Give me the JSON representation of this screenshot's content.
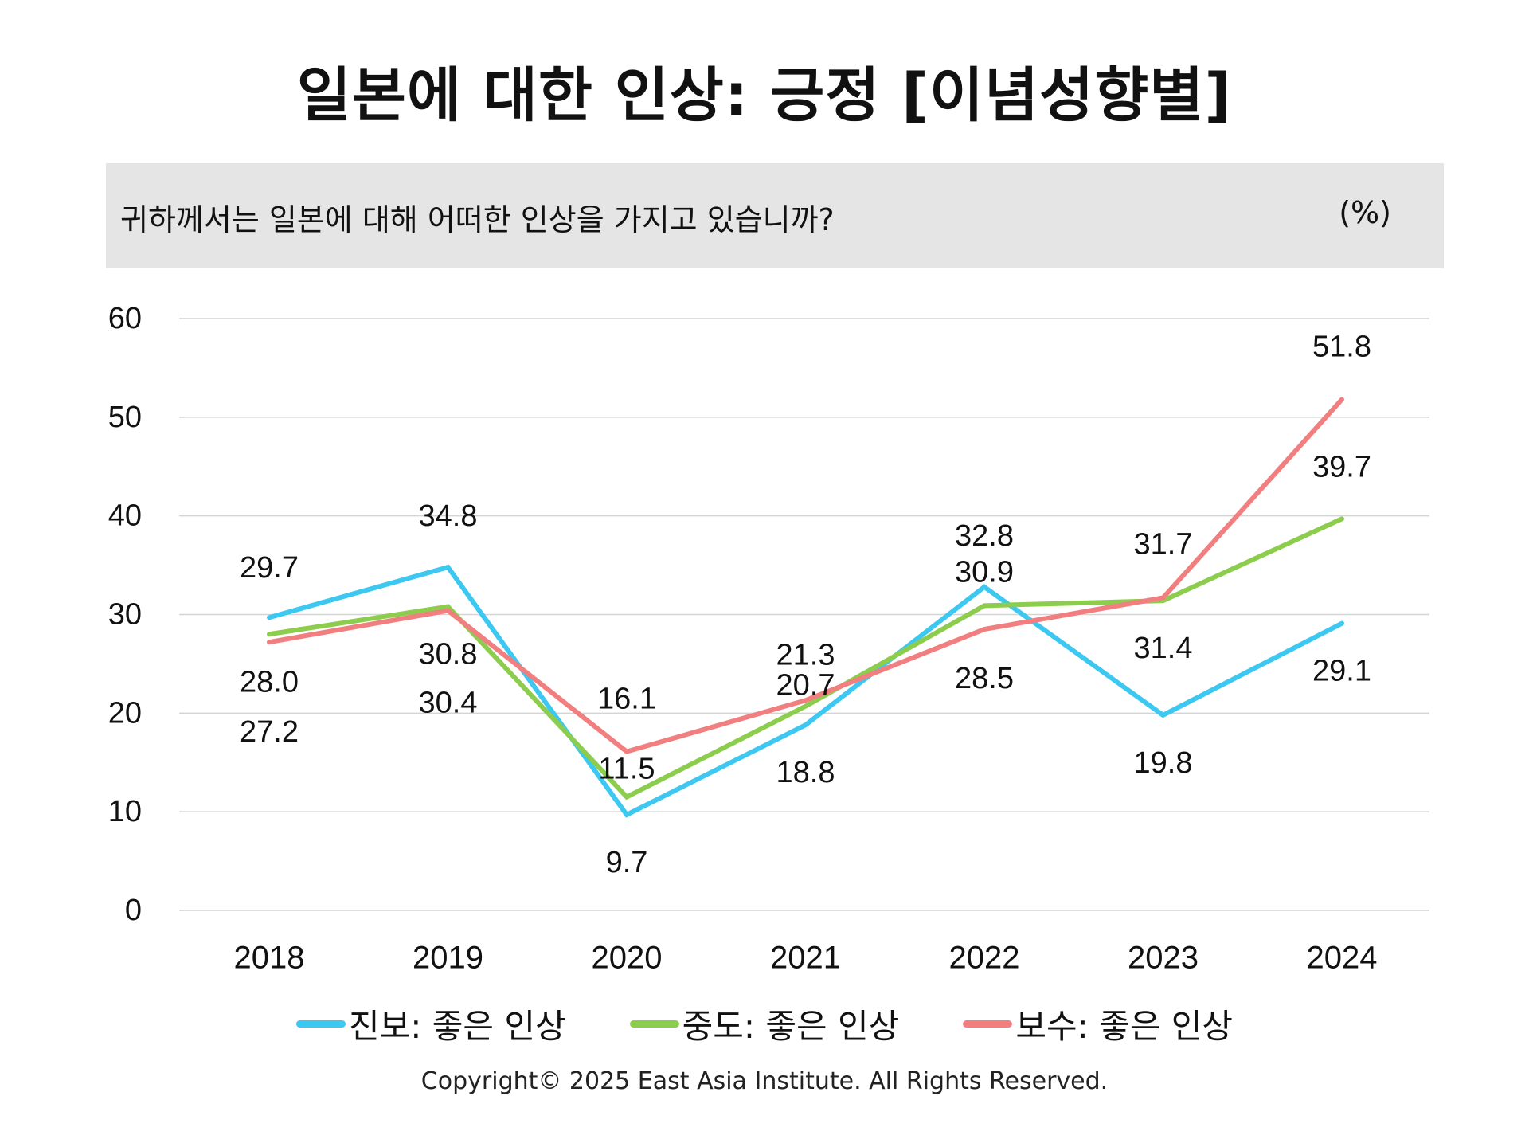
{
  "title": "일본에 대한 인상: 긍정 [이념성향별]",
  "question": "귀하께서는 일본에 대해 어떠한 인상을 가지고 있습니까?",
  "unit": "(%)",
  "copyright": "Copyright© 2025 East Asia Institute. All Rights Reserved.",
  "chart_data": {
    "type": "line",
    "x": [
      "2018",
      "2019",
      "2020",
      "2021",
      "2022",
      "2023",
      "2024"
    ],
    "ylim": [
      0,
      60
    ],
    "yticks": [
      0,
      10,
      20,
      30,
      40,
      50,
      60
    ],
    "grid": true,
    "legend_position": "bottom",
    "series": [
      {
        "name": "진보: 좋은 인상",
        "color": "#3cc8f0",
        "values": [
          29.7,
          34.8,
          9.7,
          18.8,
          32.8,
          19.8,
          29.1
        ]
      },
      {
        "name": "중도: 좋은 인상",
        "color": "#8dcd4e",
        "values": [
          28.0,
          30.8,
          11.5,
          20.7,
          30.9,
          31.4,
          39.7
        ]
      },
      {
        "name": "보수: 좋은 인상",
        "color": "#f27f80",
        "values": [
          27.2,
          30.4,
          16.1,
          21.3,
          28.5,
          31.7,
          51.8
        ]
      }
    ],
    "data_labels": [
      [
        "29.7",
        "34.8",
        "9.7",
        "18.8",
        "32.8",
        "19.8",
        "29.1"
      ],
      [
        "28.0",
        "30.8",
        "11.5",
        "20.7",
        "30.9",
        "31.4",
        "39.7"
      ],
      [
        "27.2",
        "30.4",
        "16.1",
        "21.3",
        "28.5",
        "31.7",
        "51.8"
      ]
    ]
  }
}
